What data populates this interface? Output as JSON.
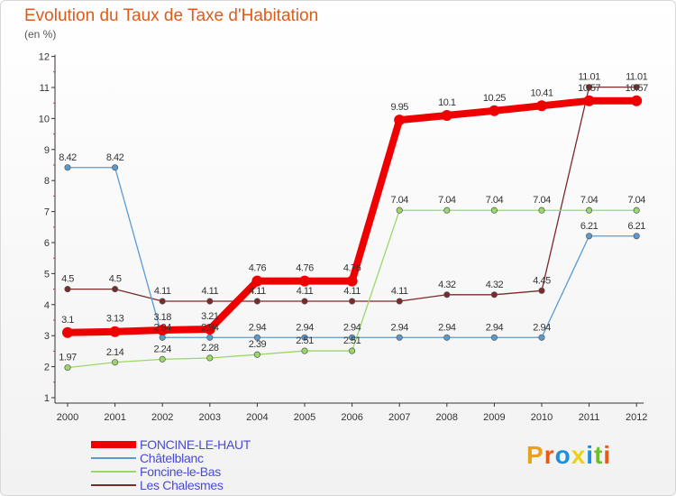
{
  "title": "Evolution du Taux de Taxe d'Habitation",
  "subtitle": "(en %)",
  "logo": {
    "letters": [
      "P",
      "r",
      "o",
      "x",
      "i",
      "t",
      "i"
    ],
    "colors": [
      "#e6a21a",
      "#e85a1a",
      "#1e8fd8",
      "#e8d21a",
      "#1e8fd8",
      "#6cbe2a",
      "#e85a1a"
    ]
  },
  "chart_data": {
    "type": "line",
    "x": [
      "2000",
      "2001",
      "2002",
      "2003",
      "2004",
      "2005",
      "2006",
      "2007",
      "2008",
      "2009",
      "2010",
      "2011",
      "2012"
    ],
    "ylim": [
      1,
      12
    ],
    "yticks": [
      1,
      2,
      3,
      4,
      5,
      6,
      7,
      8,
      9,
      10,
      11,
      12
    ],
    "grid": false,
    "legend_position": "bottom-left",
    "series": [
      {
        "name": "Les Chalesmes",
        "color": "#7a2a2a",
        "width": 1.3,
        "values": [
          4.5,
          4.5,
          4.11,
          4.11,
          4.11,
          4.11,
          4.11,
          4.11,
          4.32,
          4.32,
          4.45,
          11.01,
          11.01
        ],
        "labels": [
          "4.5",
          "4.5",
          "4.11",
          "4.11",
          "4.11",
          "4.11",
          "4.11",
          "4.11",
          "4.32",
          "4.32",
          "4.45",
          "11.01",
          "11.01"
        ]
      },
      {
        "name": "Foncine-le-Bas",
        "color": "#9ad86a",
        "width": 1.3,
        "values": [
          1.97,
          2.14,
          2.24,
          2.28,
          2.39,
          2.51,
          2.51,
          7.04,
          7.04,
          7.04,
          7.04,
          7.04,
          7.04
        ],
        "labels": [
          "1.97",
          "2.14",
          "2.24",
          "2.28",
          "2.39",
          "2.51",
          "2.51",
          "7.04",
          "7.04",
          "7.04",
          "7.04",
          "7.04",
          "7.04"
        ]
      },
      {
        "name": "Châtelblanc",
        "color": "#5a9ad0",
        "width": 1.3,
        "values": [
          8.42,
          8.42,
          2.94,
          2.94,
          2.94,
          2.94,
          2.94,
          2.94,
          2.94,
          2.94,
          2.94,
          6.21,
          6.21
        ],
        "labels": [
          "8.42",
          "8.42",
          "2.94",
          "2.94",
          "2.94",
          "2.94",
          "2.94",
          "2.94",
          "2.94",
          "2.94",
          "2.94",
          "6.21",
          "6.21"
        ]
      },
      {
        "name": "FONCINE-LE-HAUT",
        "color": "#ee0000",
        "width": 8,
        "values": [
          3.1,
          3.13,
          3.18,
          3.21,
          4.76,
          4.76,
          4.76,
          9.95,
          10.1,
          10.25,
          10.41,
          10.57,
          10.57
        ],
        "labels": [
          "3.1",
          "3.13",
          "3.18",
          "3.21",
          "4.76",
          "4.76",
          "4.76",
          "9.95",
          "10.1",
          "10.25",
          "10.41",
          "10.57",
          "10.57"
        ]
      }
    ]
  }
}
